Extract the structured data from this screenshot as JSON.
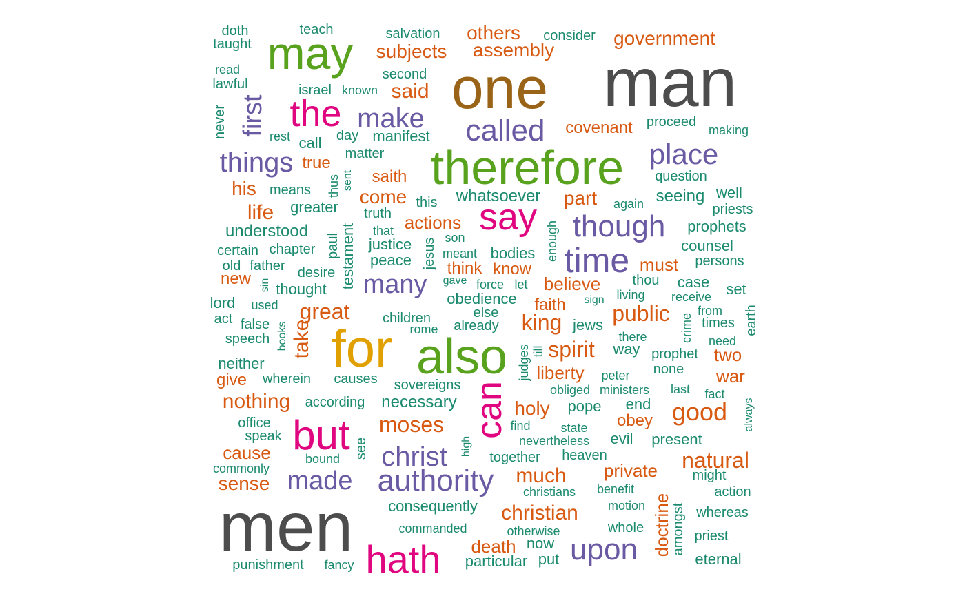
{
  "colors": {
    "gray": "#4d4d4d",
    "brown": "#9a6418",
    "green": "#58a21d",
    "gold": "#e0a000",
    "magenta": "#e0067f",
    "purple": "#6a5aa3",
    "orange": "#d85a12",
    "teal": "#1b8a6e"
  },
  "words": [
    {
      "text": "man",
      "color": "gray"
    },
    {
      "text": "men",
      "color": "gray"
    },
    {
      "text": "one",
      "color": "brown"
    },
    {
      "text": "therefore",
      "color": "green"
    },
    {
      "text": "also",
      "color": "green"
    },
    {
      "text": "may",
      "color": "green"
    },
    {
      "text": "for",
      "color": "gold"
    },
    {
      "text": "the",
      "color": "magenta"
    },
    {
      "text": "say",
      "color": "magenta"
    },
    {
      "text": "but",
      "color": "magenta"
    },
    {
      "text": "can",
      "color": "magenta"
    },
    {
      "text": "hath",
      "color": "magenta"
    },
    {
      "text": "make",
      "color": "purple"
    },
    {
      "text": "first",
      "color": "purple"
    },
    {
      "text": "called",
      "color": "purple"
    },
    {
      "text": "place",
      "color": "purple"
    },
    {
      "text": "things",
      "color": "purple"
    },
    {
      "text": "though",
      "color": "purple"
    },
    {
      "text": "time",
      "color": "purple"
    },
    {
      "text": "many",
      "color": "purple"
    },
    {
      "text": "christ",
      "color": "purple"
    },
    {
      "text": "made",
      "color": "purple"
    },
    {
      "text": "authority",
      "color": "purple"
    },
    {
      "text": "upon",
      "color": "purple"
    },
    {
      "text": "others",
      "color": "orange"
    },
    {
      "text": "government",
      "color": "orange"
    },
    {
      "text": "subjects",
      "color": "orange"
    },
    {
      "text": "assembly",
      "color": "orange"
    },
    {
      "text": "said",
      "color": "orange"
    },
    {
      "text": "covenant",
      "color": "orange"
    },
    {
      "text": "true",
      "color": "orange"
    },
    {
      "text": "saith",
      "color": "orange"
    },
    {
      "text": "his",
      "color": "orange"
    },
    {
      "text": "come",
      "color": "orange"
    },
    {
      "text": "part",
      "color": "orange"
    },
    {
      "text": "life",
      "color": "orange"
    },
    {
      "text": "actions",
      "color": "orange"
    },
    {
      "text": "think",
      "color": "orange"
    },
    {
      "text": "know",
      "color": "orange"
    },
    {
      "text": "must",
      "color": "orange"
    },
    {
      "text": "new",
      "color": "orange"
    },
    {
      "text": "believe",
      "color": "orange"
    },
    {
      "text": "faith",
      "color": "orange"
    },
    {
      "text": "great",
      "color": "orange"
    },
    {
      "text": "public",
      "color": "orange"
    },
    {
      "text": "king",
      "color": "orange"
    },
    {
      "text": "take",
      "color": "orange"
    },
    {
      "text": "spirit",
      "color": "orange"
    },
    {
      "text": "two",
      "color": "orange"
    },
    {
      "text": "liberty",
      "color": "orange"
    },
    {
      "text": "give",
      "color": "orange"
    },
    {
      "text": "war",
      "color": "orange"
    },
    {
      "text": "nothing",
      "color": "orange"
    },
    {
      "text": "holy",
      "color": "orange"
    },
    {
      "text": "good",
      "color": "orange"
    },
    {
      "text": "moses",
      "color": "orange"
    },
    {
      "text": "obey",
      "color": "orange"
    },
    {
      "text": "cause",
      "color": "orange"
    },
    {
      "text": "natural",
      "color": "orange"
    },
    {
      "text": "private",
      "color": "orange"
    },
    {
      "text": "much",
      "color": "orange"
    },
    {
      "text": "sense",
      "color": "orange"
    },
    {
      "text": "christian",
      "color": "orange"
    },
    {
      "text": "doctrine",
      "color": "orange"
    },
    {
      "text": "death",
      "color": "orange"
    },
    {
      "text": "doth",
      "color": "teal"
    },
    {
      "text": "teach",
      "color": "teal"
    },
    {
      "text": "salvation",
      "color": "teal"
    },
    {
      "text": "consider",
      "color": "teal"
    },
    {
      "text": "taught",
      "color": "teal"
    },
    {
      "text": "read",
      "color": "teal"
    },
    {
      "text": "second",
      "color": "teal"
    },
    {
      "text": "lawful",
      "color": "teal"
    },
    {
      "text": "israel",
      "color": "teal"
    },
    {
      "text": "known",
      "color": "teal"
    },
    {
      "text": "never",
      "color": "teal"
    },
    {
      "text": "proceed",
      "color": "teal"
    },
    {
      "text": "making",
      "color": "teal"
    },
    {
      "text": "rest",
      "color": "teal"
    },
    {
      "text": "day",
      "color": "teal"
    },
    {
      "text": "manifest",
      "color": "teal"
    },
    {
      "text": "call",
      "color": "teal"
    },
    {
      "text": "matter",
      "color": "teal"
    },
    {
      "text": "question",
      "color": "teal"
    },
    {
      "text": "thus",
      "color": "teal"
    },
    {
      "text": "sent",
      "color": "teal"
    },
    {
      "text": "means",
      "color": "teal"
    },
    {
      "text": "whatsoever",
      "color": "teal"
    },
    {
      "text": "well",
      "color": "teal"
    },
    {
      "text": "seeing",
      "color": "teal"
    },
    {
      "text": "greater",
      "color": "teal"
    },
    {
      "text": "truth",
      "color": "teal"
    },
    {
      "text": "this",
      "color": "teal"
    },
    {
      "text": "again",
      "color": "teal"
    },
    {
      "text": "priests",
      "color": "teal"
    },
    {
      "text": "understood",
      "color": "teal"
    },
    {
      "text": "paul",
      "color": "teal"
    },
    {
      "text": "testament",
      "color": "teal"
    },
    {
      "text": "that",
      "color": "teal"
    },
    {
      "text": "enough",
      "color": "teal"
    },
    {
      "text": "prophets",
      "color": "teal"
    },
    {
      "text": "certain",
      "color": "teal"
    },
    {
      "text": "chapter",
      "color": "teal"
    },
    {
      "text": "justice",
      "color": "teal"
    },
    {
      "text": "jesus",
      "color": "teal"
    },
    {
      "text": "son",
      "color": "teal"
    },
    {
      "text": "counsel",
      "color": "teal"
    },
    {
      "text": "old",
      "color": "teal"
    },
    {
      "text": "father",
      "color": "teal"
    },
    {
      "text": "peace",
      "color": "teal"
    },
    {
      "text": "meant",
      "color": "teal"
    },
    {
      "text": "bodies",
      "color": "teal"
    },
    {
      "text": "persons",
      "color": "teal"
    },
    {
      "text": "desire",
      "color": "teal"
    },
    {
      "text": "sin",
      "color": "teal"
    },
    {
      "text": "thought",
      "color": "teal"
    },
    {
      "text": "gave",
      "color": "teal"
    },
    {
      "text": "force",
      "color": "teal"
    },
    {
      "text": "let",
      "color": "teal"
    },
    {
      "text": "thou",
      "color": "teal"
    },
    {
      "text": "case",
      "color": "teal"
    },
    {
      "text": "set",
      "color": "teal"
    },
    {
      "text": "lord",
      "color": "teal"
    },
    {
      "text": "used",
      "color": "teal"
    },
    {
      "text": "obedience",
      "color": "teal"
    },
    {
      "text": "sign",
      "color": "teal"
    },
    {
      "text": "living",
      "color": "teal"
    },
    {
      "text": "receive",
      "color": "teal"
    },
    {
      "text": "from",
      "color": "teal"
    },
    {
      "text": "earth",
      "color": "teal"
    },
    {
      "text": "act",
      "color": "teal"
    },
    {
      "text": "false",
      "color": "teal"
    },
    {
      "text": "books",
      "color": "teal"
    },
    {
      "text": "children",
      "color": "teal"
    },
    {
      "text": "else",
      "color": "teal"
    },
    {
      "text": "already",
      "color": "teal"
    },
    {
      "text": "jews",
      "color": "teal"
    },
    {
      "text": "times",
      "color": "teal"
    },
    {
      "text": "speech",
      "color": "teal"
    },
    {
      "text": "rome",
      "color": "teal"
    },
    {
      "text": "judges",
      "color": "teal"
    },
    {
      "text": "till",
      "color": "teal"
    },
    {
      "text": "there",
      "color": "teal"
    },
    {
      "text": "crime",
      "color": "teal"
    },
    {
      "text": "need",
      "color": "teal"
    },
    {
      "text": "way",
      "color": "teal"
    },
    {
      "text": "prophet",
      "color": "teal"
    },
    {
      "text": "neither",
      "color": "teal"
    },
    {
      "text": "wherein",
      "color": "teal"
    },
    {
      "text": "causes",
      "color": "teal"
    },
    {
      "text": "sovereigns",
      "color": "teal"
    },
    {
      "text": "peter",
      "color": "teal"
    },
    {
      "text": "none",
      "color": "teal"
    },
    {
      "text": "obliged",
      "color": "teal"
    },
    {
      "text": "ministers",
      "color": "teal"
    },
    {
      "text": "last",
      "color": "teal"
    },
    {
      "text": "fact",
      "color": "teal"
    },
    {
      "text": "according",
      "color": "teal"
    },
    {
      "text": "necessary",
      "color": "teal"
    },
    {
      "text": "end",
      "color": "teal"
    },
    {
      "text": "pope",
      "color": "teal"
    },
    {
      "text": "always",
      "color": "teal"
    },
    {
      "text": "office",
      "color": "teal"
    },
    {
      "text": "find",
      "color": "teal"
    },
    {
      "text": "state",
      "color": "teal"
    },
    {
      "text": "speak",
      "color": "teal"
    },
    {
      "text": "see",
      "color": "teal"
    },
    {
      "text": "high",
      "color": "teal"
    },
    {
      "text": "nevertheless",
      "color": "teal"
    },
    {
      "text": "evil",
      "color": "teal"
    },
    {
      "text": "present",
      "color": "teal"
    },
    {
      "text": "bound",
      "color": "teal"
    },
    {
      "text": "together",
      "color": "teal"
    },
    {
      "text": "heaven",
      "color": "teal"
    },
    {
      "text": "commonly",
      "color": "teal"
    },
    {
      "text": "might",
      "color": "teal"
    },
    {
      "text": "christians",
      "color": "teal"
    },
    {
      "text": "benefit",
      "color": "teal"
    },
    {
      "text": "action",
      "color": "teal"
    },
    {
      "text": "amongst",
      "color": "teal"
    },
    {
      "text": "consequently",
      "color": "teal"
    },
    {
      "text": "motion",
      "color": "teal"
    },
    {
      "text": "whereas",
      "color": "teal"
    },
    {
      "text": "commanded",
      "color": "teal"
    },
    {
      "text": "otherwise",
      "color": "teal"
    },
    {
      "text": "whole",
      "color": "teal"
    },
    {
      "text": "priest",
      "color": "teal"
    },
    {
      "text": "now",
      "color": "teal"
    },
    {
      "text": "punishment",
      "color": "teal"
    },
    {
      "text": "fancy",
      "color": "teal"
    },
    {
      "text": "particular",
      "color": "teal"
    },
    {
      "text": "put",
      "color": "teal"
    },
    {
      "text": "eternal",
      "color": "teal"
    }
  ]
}
